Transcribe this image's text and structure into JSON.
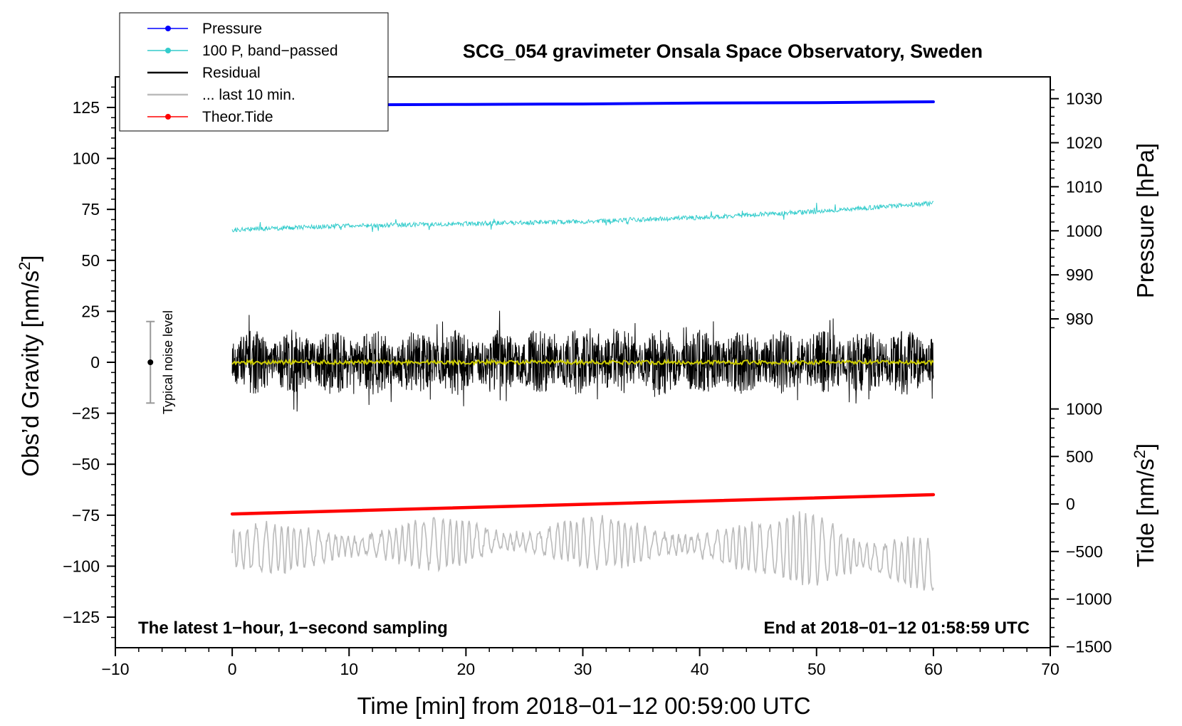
{
  "chart_data": {
    "type": "line",
    "title": "SCG_054 gravimeter Onsala Space Observatory, Sweden",
    "xlabel": "Time [min] from 2018−01−12 00:59:00 UTC",
    "ylabel_left": "Obs’d Gravity [nm/s",
    "ylabel_left_sup": "2",
    "ylabel_left_close": "]",
    "ylabel_right_pressure": "Pressure [hPa]",
    "ylabel_right_tide": "Tide [nm/s",
    "ylabel_right_tide_sup": "2",
    "ylabel_right_tide_close": "]",
    "xlim": [
      -10,
      70
    ],
    "ylim_left": [
      -140,
      140
    ],
    "x_ticks": [
      {
        "value": -10,
        "label": "−10"
      },
      {
        "value": 0,
        "label": "0"
      },
      {
        "value": 10,
        "label": "10"
      },
      {
        "value": 20,
        "label": "20"
      },
      {
        "value": 30,
        "label": "30"
      },
      {
        "value": 40,
        "label": "40"
      },
      {
        "value": 50,
        "label": "50"
      },
      {
        "value": 60,
        "label": "60"
      },
      {
        "value": 70,
        "label": "70"
      }
    ],
    "y_ticks_left": [
      {
        "value": 125,
        "label": "125"
      },
      {
        "value": 100,
        "label": "100"
      },
      {
        "value": 75,
        "label": "75"
      },
      {
        "value": 50,
        "label": "50"
      },
      {
        "value": 25,
        "label": "25"
      },
      {
        "value": 0,
        "label": "0"
      },
      {
        "value": -25,
        "label": "−25"
      },
      {
        "value": -50,
        "label": "−50"
      },
      {
        "value": -75,
        "label": "−75"
      },
      {
        "value": -100,
        "label": "−100"
      },
      {
        "value": -125,
        "label": "−125"
      }
    ],
    "pressure_axis": {
      "map": {
        "hpa_ref": 1000,
        "gravity_at_ref": 64.5,
        "gravity_per_hpa": 2.16
      },
      "ticks": [
        {
          "value": 1030,
          "label": "1030"
        },
        {
          "value": 1020,
          "label": "1020"
        },
        {
          "value": 1010,
          "label": "1010"
        },
        {
          "value": 1000,
          "label": "1000"
        },
        {
          "value": 990,
          "label": "990"
        },
        {
          "value": 980,
          "label": "980"
        }
      ]
    },
    "tide_axis": {
      "map": {
        "tide_ref": 0,
        "gravity_at_ref": -69.5,
        "gravity_per_unit": 0.0466
      },
      "ticks": [
        {
          "value": 1000,
          "label": "1000"
        },
        {
          "value": 500,
          "label": "500"
        },
        {
          "value": 0,
          "label": "0"
        },
        {
          "value": -500,
          "label": "−500"
        },
        {
          "value": -1000,
          "label": "−1000"
        },
        {
          "value": -1500,
          "label": "−1500"
        }
      ]
    },
    "series": [
      {
        "name": "Pressure",
        "unit": "hPa",
        "color": "#0000ff",
        "x": [
          0,
          10,
          20,
          30,
          40,
          50,
          60
        ],
        "values": [
          1028.6,
          1028.6,
          1028.7,
          1028.8,
          1029.0,
          1029.1,
          1029.3
        ]
      },
      {
        "name": "100 P, band−passed",
        "unit": "nm/s2 (plot)",
        "color": "#33cccc",
        "x": [
          0,
          10,
          20,
          30,
          40,
          50,
          60
        ],
        "values": [
          65,
          67,
          68,
          69,
          71,
          74,
          78
        ]
      },
      {
        "name": "Residual",
        "unit": "nm/s2",
        "color": "#000000",
        "x": [
          0,
          60
        ],
        "values": [
          0,
          0
        ],
        "envelope": [
          -33,
          33
        ]
      },
      {
        "name": "... last 10 min.",
        "unit": "nm/s2",
        "color": "#bbbbbb",
        "x": [
          0,
          10,
          20,
          30,
          40,
          50,
          60
        ],
        "values": [
          -92,
          -90,
          -88,
          -88,
          -90,
          -92,
          -100
        ]
      },
      {
        "name": "Theor.Tide",
        "unit": "nm/s2",
        "color": "#ff0000",
        "x": [
          0,
          60
        ],
        "values": [
          -105,
          98
        ]
      },
      {
        "name": "Smoothed residual",
        "unit": "nm/s2",
        "color": "#cccc00",
        "x": [
          0,
          60
        ],
        "values": [
          0,
          0
        ]
      }
    ],
    "legend": {
      "placement": "top-left",
      "entries": [
        {
          "label": "Pressure",
          "color": "#0000ff",
          "marker": true
        },
        {
          "label": "100 P, band−passed",
          "color": "#33cccc",
          "marker": true
        },
        {
          "label": "Residual",
          "color": "#000000",
          "marker": false
        },
        {
          "label": "... last 10 min.",
          "color": "#bbbbbb",
          "marker": false
        },
        {
          "label": "Theor.Tide",
          "color": "#ff0000",
          "marker": true
        }
      ]
    },
    "noise_level": {
      "label": "Typical noise level",
      "x": -7,
      "center": 0,
      "range": [
        -20,
        20
      ]
    },
    "annotations": {
      "bottom_left": "The latest 1−hour, 1−second sampling",
      "bottom_right": "End at 2018−01−12 01:58:59 UTC"
    }
  }
}
